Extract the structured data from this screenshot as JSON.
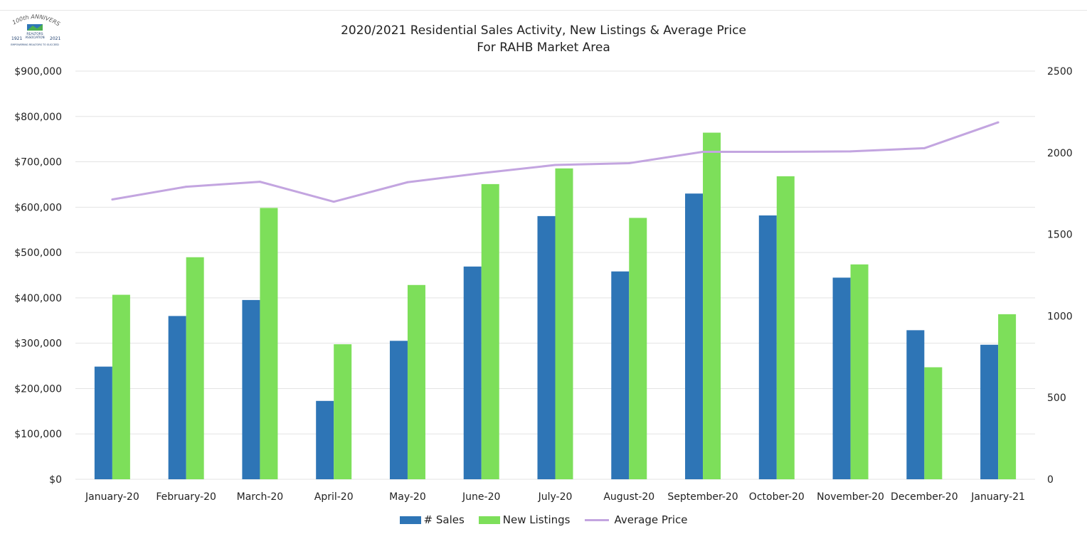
{
  "colors": {
    "sales": "#2e75b6",
    "listings": "#7ddf5a",
    "price": "#c3a5e0",
    "grid": "#e3e3e3"
  },
  "logo": {
    "icon": "realtors-association-logo",
    "text_top": "100th ANNIVERSARY",
    "text_mid": "REALTORS ASSOCIATION",
    "year_left": "1921",
    "year_right": "2021",
    "text_bottom": "EMPOWERING REALTORS TO SUCCEED"
  },
  "chart_data": {
    "type": "bar",
    "title": "2020/2021 Residential Sales Activity, New Listings & Average Price",
    "subtitle": "For RAHB Market Area",
    "categories": [
      "January-20",
      "February-20",
      "March-20",
      "April-20",
      "May-20",
      "June-20",
      "July-20",
      "August-20",
      "September-20",
      "October-20",
      "November-20",
      "December-20",
      "January-21"
    ],
    "series": [
      {
        "name": "# Sales",
        "type": "bar",
        "axis": "right",
        "values": [
          690,
          1000,
          1098,
          480,
          848,
          1303,
          1612,
          1273,
          1750,
          1616,
          1235,
          913,
          824
        ]
      },
      {
        "name": "New Listings",
        "type": "bar",
        "axis": "right",
        "values": [
          1130,
          1360,
          1662,
          827,
          1190,
          1808,
          1904,
          1601,
          2123,
          1856,
          1316,
          686,
          1011
        ]
      },
      {
        "name": "Average Price",
        "type": "line",
        "axis": "left",
        "values": [
          617000,
          645000,
          656000,
          612000,
          655000,
          675000,
          693000,
          697000,
          722000,
          722000,
          723000,
          730000,
          787000
        ]
      }
    ],
    "left_axis": {
      "min": 0,
      "max": 900000,
      "step": 100000,
      "tick_labels": [
        "$0",
        "$100,000",
        "$200,000",
        "$300,000",
        "$400,000",
        "$500,000",
        "$600,000",
        "$700,000",
        "$800,000",
        "$900,000"
      ]
    },
    "right_axis": {
      "min": 0,
      "max": 2500,
      "step": 500,
      "tick_labels": [
        "0",
        "500",
        "1000",
        "1500",
        "2000",
        "2500"
      ]
    },
    "grid": true,
    "legend_position": "bottom"
  }
}
